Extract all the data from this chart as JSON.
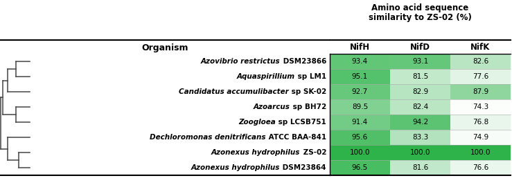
{
  "organisms": [
    {
      "italic_part": "Azovibrio restrictus",
      "roman_part": " DSM23866",
      "NifH": 93.4,
      "NifD": 93.1,
      "NifK": 82.6
    },
    {
      "italic_part": "Aquaspirillium",
      "roman_part": " sp LM1",
      "NifH": 95.1,
      "NifD": 81.5,
      "NifK": 77.6
    },
    {
      "italic_part": "Candidatus accumulibacter",
      "roman_part": " sp SK-02",
      "NifH": 92.7,
      "NifD": 82.9,
      "NifK": 87.9
    },
    {
      "italic_part": "Azoarcus",
      "roman_part": " sp BH72",
      "NifH": 89.5,
      "NifD": 82.4,
      "NifK": 74.3
    },
    {
      "italic_part": "Zoogloea",
      "roman_part": " sp LCSB751",
      "NifH": 91.4,
      "NifD": 94.2,
      "NifK": 76.8
    },
    {
      "italic_part": "Dechloromonas denitrificans",
      "roman_part": " ATCC BAA-841",
      "NifH": 95.6,
      "NifD": 83.3,
      "NifK": 74.9
    },
    {
      "italic_part": "Azonexus hydrophilus",
      "roman_part": " ZS-02",
      "NifH": 100.0,
      "NifD": 100.0,
      "NifK": 100.0
    },
    {
      "italic_part": "Azonexus hydrophilus",
      "roman_part": " DSM23864",
      "NifH": 96.5,
      "NifD": 81.6,
      "NifK": 76.6
    }
  ],
  "columns": [
    "NifH",
    "NifD",
    "NifK"
  ],
  "header_line1": "Amino acid sequence",
  "header_line2": "similarity to ZS-02 (%)",
  "col_header": "Organism",
  "vmin": 74.0,
  "vmax": 100.0,
  "bg_color": "#ffffff",
  "text_color": "#000000",
  "tree_color": "#444444",
  "data_font_size": 7.5,
  "label_font_size": 7.5,
  "header_font_size": 8.5,
  "col_header_font_size": 9.0,
  "fig_width": 7.39,
  "fig_height": 2.71,
  "dpi": 100
}
